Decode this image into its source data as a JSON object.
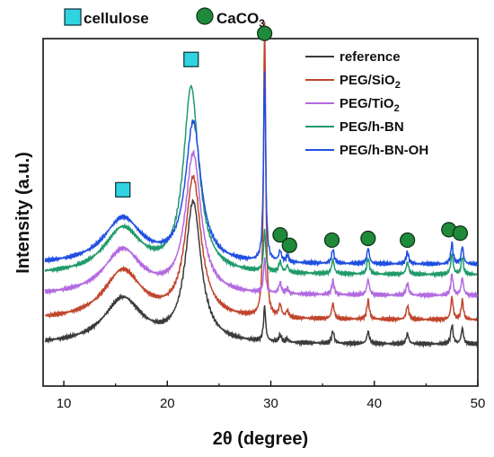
{
  "chart_data": {
    "type": "line",
    "xlabel_prefix": "2θ",
    "xlabel_rest": " (degree)",
    "ylabel": "Intensity (a.u.)",
    "xlim": [
      8,
      50
    ],
    "ylim": [
      0,
      1
    ],
    "x_ticks": [
      10,
      20,
      30,
      40,
      50
    ],
    "y_ticks_labeled": false,
    "grid": false,
    "legend_position": "top-right",
    "series": [
      {
        "name": "reference",
        "name_main": "reference",
        "name_sub": "",
        "name_tail": "",
        "color": "#3a3a3a",
        "offset": 0.12,
        "peaks": [
          [
            15.7,
            2.2,
            0.13
          ],
          [
            22.5,
            0.9,
            0.4
          ],
          [
            29.4,
            0.12,
            0.1
          ],
          [
            30.9,
            0.15,
            0.02
          ],
          [
            31.6,
            0.12,
            0.01
          ],
          [
            36.0,
            0.14,
            0.035
          ],
          [
            39.4,
            0.14,
            0.035
          ],
          [
            43.2,
            0.14,
            0.03
          ],
          [
            47.5,
            0.13,
            0.055
          ],
          [
            48.5,
            0.13,
            0.045
          ]
        ]
      },
      {
        "name": "PEG/SiO2",
        "name_main": "PEG/SiO",
        "name_sub": "2",
        "name_tail": "",
        "color": "#c0452c",
        "offset": 0.19,
        "peaks": [
          [
            15.7,
            2.2,
            0.14
          ],
          [
            22.5,
            0.9,
            0.4
          ],
          [
            29.4,
            0.12,
            0.85
          ],
          [
            30.9,
            0.15,
            0.035
          ],
          [
            31.6,
            0.12,
            0.02
          ],
          [
            36.0,
            0.14,
            0.045
          ],
          [
            39.4,
            0.14,
            0.055
          ],
          [
            43.2,
            0.14,
            0.04
          ],
          [
            47.5,
            0.13,
            0.065
          ],
          [
            48.5,
            0.13,
            0.055
          ]
        ]
      },
      {
        "name": "PEG/TiO2",
        "name_main": "PEG/TiO",
        "name_sub": "2",
        "name_tail": "",
        "color": "#b36ae0",
        "offset": 0.26,
        "peaks": [
          [
            15.7,
            2.2,
            0.13
          ],
          [
            22.5,
            0.9,
            0.4
          ],
          [
            29.4,
            0.12,
            0.1
          ],
          [
            30.9,
            0.15,
            0.03
          ],
          [
            31.6,
            0.12,
            0.015
          ],
          [
            36.0,
            0.14,
            0.04
          ],
          [
            39.4,
            0.14,
            0.045
          ],
          [
            43.2,
            0.14,
            0.035
          ],
          [
            47.5,
            0.13,
            0.06
          ],
          [
            48.5,
            0.13,
            0.05
          ]
        ]
      },
      {
        "name": "PEG/h-BN",
        "name_main": "PEG/h-BN",
        "name_sub": "",
        "name_tail": "",
        "color": "#1f9a6a",
        "offset": 0.32,
        "peaks": [
          [
            15.7,
            2.2,
            0.13
          ],
          [
            22.3,
            0.9,
            0.53
          ],
          [
            29.4,
            0.12,
            0.12
          ],
          [
            30.9,
            0.15,
            0.03
          ],
          [
            31.6,
            0.12,
            0.02
          ],
          [
            36.0,
            0.14,
            0.04
          ],
          [
            39.4,
            0.14,
            0.045
          ],
          [
            43.2,
            0.14,
            0.035
          ],
          [
            47.5,
            0.13,
            0.06
          ],
          [
            48.5,
            0.13,
            0.05
          ]
        ]
      },
      {
        "name": "PEG/h-BN-OH",
        "name_main": "PEG/h-BN-OH",
        "name_sub": "",
        "name_tail": "",
        "color": "#1f4fe0",
        "offset": 0.35,
        "peaks": [
          [
            15.7,
            2.2,
            0.13
          ],
          [
            22.5,
            0.9,
            0.4
          ],
          [
            29.4,
            0.12,
            0.55
          ],
          [
            30.9,
            0.15,
            0.03
          ],
          [
            31.6,
            0.12,
            0.02
          ],
          [
            36.0,
            0.14,
            0.04
          ],
          [
            39.4,
            0.14,
            0.045
          ],
          [
            43.2,
            0.14,
            0.035
          ],
          [
            47.5,
            0.13,
            0.06
          ],
          [
            48.5,
            0.13,
            0.05
          ]
        ]
      }
    ],
    "markers": {
      "cellulose": {
        "label": "cellulose",
        "color": "#2fd4e0",
        "positions": [
          [
            15.7,
            0.565
          ],
          [
            22.3,
            0.94
          ]
        ]
      },
      "caco3": {
        "label_main": "CaCO",
        "label_sub": "3",
        "color": "#1f8a3a",
        "positions": [
          [
            29.4,
            1.015
          ],
          [
            30.9,
            0.435
          ],
          [
            31.8,
            0.405
          ],
          [
            35.9,
            0.42
          ],
          [
            39.4,
            0.425
          ],
          [
            43.2,
            0.42
          ],
          [
            47.2,
            0.45
          ],
          [
            48.3,
            0.44
          ]
        ]
      }
    }
  }
}
